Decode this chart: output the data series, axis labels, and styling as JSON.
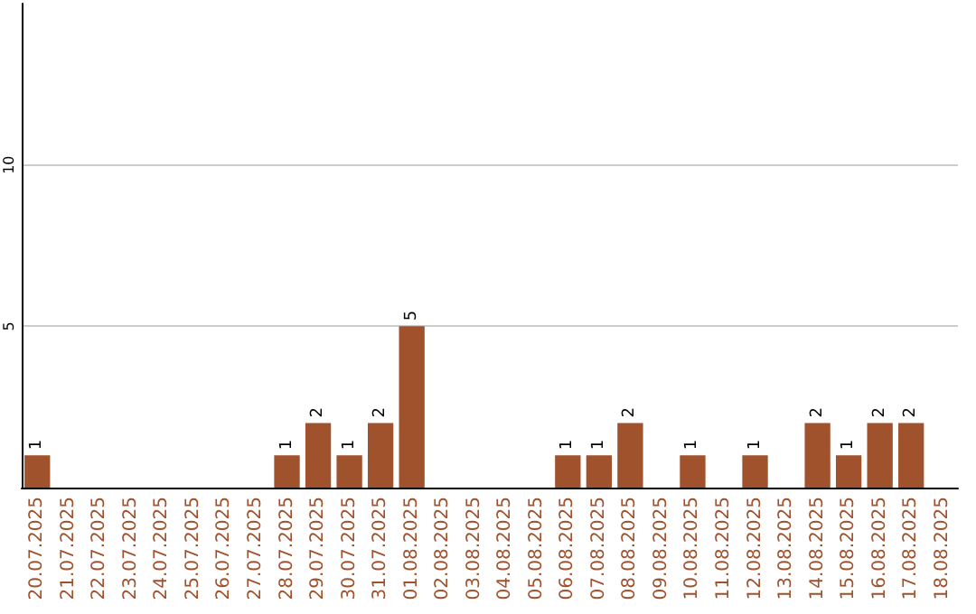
{
  "chart_data": {
    "type": "bar",
    "categories": [
      "20.07.2025",
      "21.07.2025",
      "22.07.2025",
      "23.07.2025",
      "24.07.2025",
      "25.07.2025",
      "26.07.2025",
      "27.07.2025",
      "28.07.2025",
      "29.07.2025",
      "30.07.2025",
      "31.07.2025",
      "01.08.2025",
      "02.08.2025",
      "03.08.2025",
      "04.08.2025",
      "05.08.2025",
      "06.08.2025",
      "07.08.2025",
      "08.08.2025",
      "09.08.2025",
      "10.08.2025",
      "11.08.2025",
      "12.08.2025",
      "13.08.2025",
      "14.08.2025",
      "15.08.2025",
      "16.08.2025",
      "17.08.2025",
      "18.08.2025"
    ],
    "values": [
      1,
      null,
      null,
      null,
      null,
      null,
      null,
      null,
      1,
      2,
      1,
      2,
      5,
      null,
      null,
      null,
      null,
      1,
      1,
      2,
      null,
      1,
      null,
      1,
      null,
      2,
      1,
      2,
      2,
      null
    ],
    "color": "#a0522d",
    "ylim": [
      0,
      15
    ],
    "yticks": [
      5,
      10
    ],
    "grid": "y",
    "data_labels": true
  }
}
